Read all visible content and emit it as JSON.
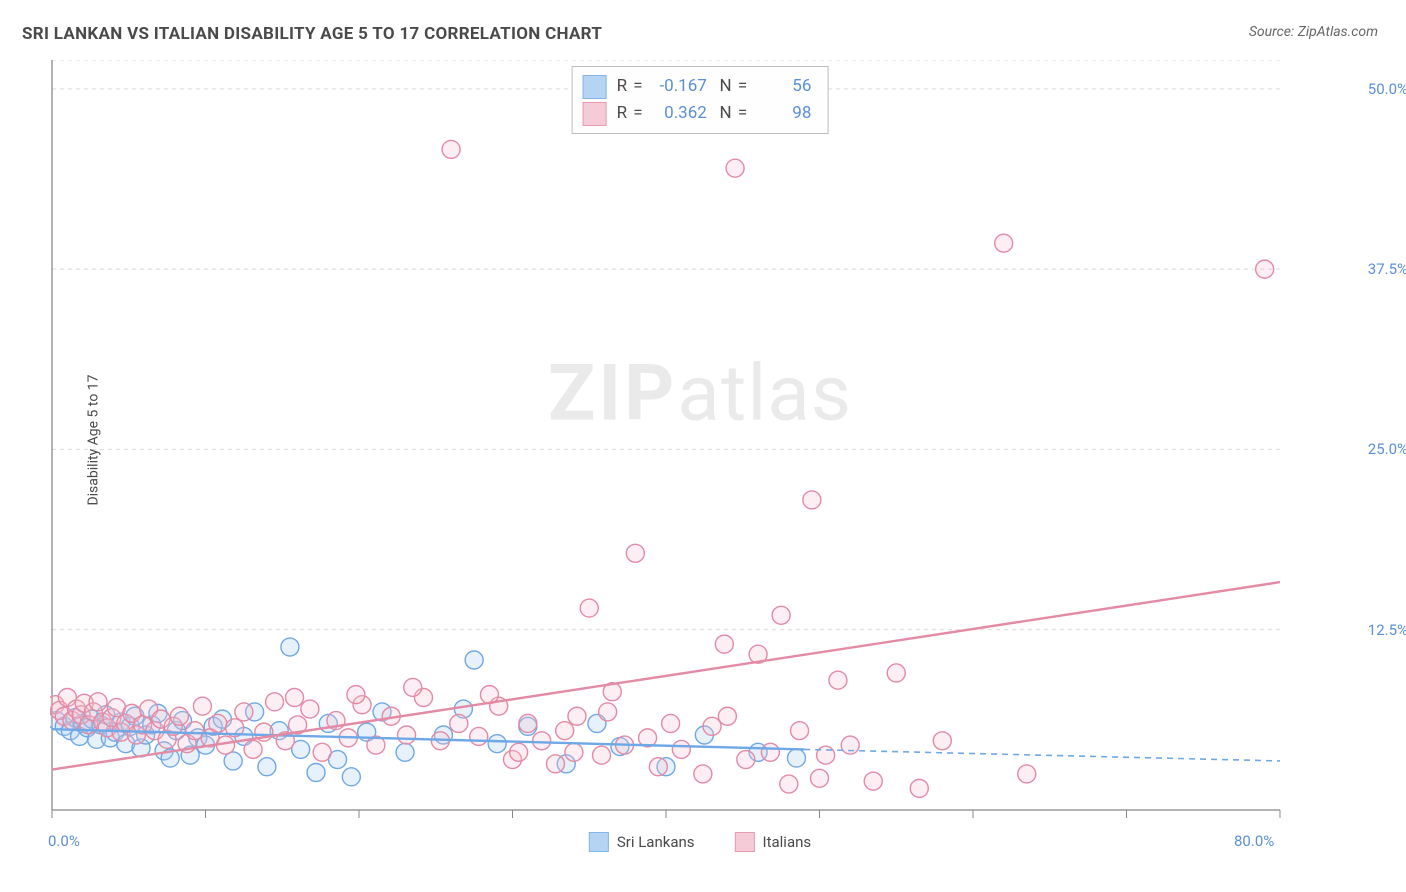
{
  "title": "SRI LANKAN VS ITALIAN DISABILITY AGE 5 TO 17 CORRELATION CHART",
  "source": "Source: ZipAtlas.com",
  "watermark": {
    "bold": "ZIP",
    "rest": "atlas"
  },
  "y_axis_title": "Disability Age 5 to 17",
  "chart": {
    "type": "scatter",
    "xlim": [
      0,
      80
    ],
    "ylim": [
      0,
      52
    ],
    "xtick_positions": [
      0,
      10,
      20,
      30,
      40,
      50,
      60,
      70,
      80
    ],
    "xtick_labels": {
      "0": "0.0%",
      "80": "80.0%"
    },
    "ytick_positions": [
      12.5,
      25.0,
      37.5,
      50.0
    ],
    "ytick_labels": [
      "12.5%",
      "25.0%",
      "37.5%",
      "50.0%"
    ],
    "grid_color": "#d9d9d9",
    "axis_color": "#888888",
    "background_color": "#ffffff",
    "marker_radius": 9,
    "marker_stroke_width": 1.4,
    "marker_fill_opacity": 0.28,
    "trend_line_width": 2.4,
    "series": [
      {
        "name": "Sri Lankans",
        "color_stroke": "#6fa8e6",
        "color_fill": "#a9cdf2",
        "R": "-0.167",
        "N": "56",
        "trend": {
          "x1": 0,
          "y1": 5.6,
          "x2": 49,
          "y2": 4.2,
          "dash_extend_to_x": 80,
          "dash_y": 3.4
        },
        "points": [
          [
            0.3,
            6.2
          ],
          [
            0.8,
            5.8
          ],
          [
            1.2,
            5.5
          ],
          [
            1.5,
            6.4
          ],
          [
            1.8,
            5.1
          ],
          [
            2.0,
            6.0
          ],
          [
            2.3,
            5.7
          ],
          [
            2.6,
            6.3
          ],
          [
            2.9,
            4.9
          ],
          [
            3.2,
            5.9
          ],
          [
            3.5,
            6.6
          ],
          [
            3.8,
            5.0
          ],
          [
            4.1,
            5.4
          ],
          [
            4.5,
            6.1
          ],
          [
            4.8,
            4.6
          ],
          [
            5.1,
            5.8
          ],
          [
            5.4,
            6.5
          ],
          [
            5.8,
            4.3
          ],
          [
            6.1,
            5.2
          ],
          [
            6.5,
            5.9
          ],
          [
            6.9,
            6.7
          ],
          [
            7.3,
            4.1
          ],
          [
            7.7,
            3.6
          ],
          [
            8.1,
            5.5
          ],
          [
            8.5,
            6.2
          ],
          [
            9.0,
            3.8
          ],
          [
            9.5,
            5.0
          ],
          [
            10.0,
            4.5
          ],
          [
            10.5,
            5.8
          ],
          [
            11.1,
            6.3
          ],
          [
            11.8,
            3.4
          ],
          [
            12.5,
            5.1
          ],
          [
            13.2,
            6.8
          ],
          [
            14.0,
            3.0
          ],
          [
            14.8,
            5.5
          ],
          [
            15.5,
            11.3
          ],
          [
            16.2,
            4.2
          ],
          [
            17.2,
            2.6
          ],
          [
            18.0,
            6.0
          ],
          [
            18.6,
            3.5
          ],
          [
            19.5,
            2.3
          ],
          [
            20.5,
            5.4
          ],
          [
            21.5,
            6.8
          ],
          [
            23.0,
            4.0
          ],
          [
            25.5,
            5.2
          ],
          [
            26.8,
            7.0
          ],
          [
            27.5,
            10.4
          ],
          [
            29.0,
            4.6
          ],
          [
            31.0,
            5.8
          ],
          [
            33.5,
            3.2
          ],
          [
            35.5,
            6.0
          ],
          [
            37.0,
            4.4
          ],
          [
            40.0,
            3.0
          ],
          [
            42.5,
            5.2
          ],
          [
            46.0,
            4.0
          ],
          [
            48.5,
            3.6
          ]
        ]
      },
      {
        "name": "Italians",
        "color_stroke": "#e38aa5",
        "color_fill": "#f5c3d2",
        "R": "0.362",
        "N": "98",
        "trend": {
          "x1": 0,
          "y1": 2.8,
          "x2": 80,
          "y2": 15.8
        },
        "points": [
          [
            0.2,
            7.3
          ],
          [
            0.5,
            6.9
          ],
          [
            0.8,
            6.5
          ],
          [
            1.0,
            7.8
          ],
          [
            1.3,
            6.2
          ],
          [
            1.6,
            7.0
          ],
          [
            1.9,
            6.6
          ],
          [
            2.1,
            7.4
          ],
          [
            2.4,
            5.9
          ],
          [
            2.7,
            6.8
          ],
          [
            3.0,
            7.5
          ],
          [
            3.3,
            6.1
          ],
          [
            3.6,
            5.7
          ],
          [
            3.9,
            6.4
          ],
          [
            4.2,
            7.1
          ],
          [
            4.5,
            5.4
          ],
          [
            4.8,
            6.0
          ],
          [
            5.2,
            6.7
          ],
          [
            5.5,
            5.2
          ],
          [
            5.9,
            5.9
          ],
          [
            6.3,
            7.0
          ],
          [
            6.7,
            5.5
          ],
          [
            7.1,
            6.3
          ],
          [
            7.5,
            4.9
          ],
          [
            7.9,
            5.8
          ],
          [
            8.3,
            6.5
          ],
          [
            8.8,
            4.6
          ],
          [
            9.3,
            5.5
          ],
          [
            9.8,
            7.2
          ],
          [
            10.3,
            5.0
          ],
          [
            10.8,
            6.0
          ],
          [
            11.3,
            4.5
          ],
          [
            11.9,
            5.7
          ],
          [
            12.5,
            6.8
          ],
          [
            13.1,
            4.2
          ],
          [
            13.8,
            5.4
          ],
          [
            14.5,
            7.5
          ],
          [
            15.2,
            4.8
          ],
          [
            16.0,
            5.9
          ],
          [
            16.8,
            7.0
          ],
          [
            17.6,
            4.0
          ],
          [
            18.5,
            6.2
          ],
          [
            19.3,
            5.0
          ],
          [
            20.2,
            7.3
          ],
          [
            21.1,
            4.5
          ],
          [
            22.1,
            6.5
          ],
          [
            23.1,
            5.2
          ],
          [
            24.2,
            7.8
          ],
          [
            25.3,
            4.8
          ],
          [
            26.5,
            6.0
          ],
          [
            27.8,
            5.1
          ],
          [
            29.1,
            7.2
          ],
          [
            30.0,
            3.5
          ],
          [
            30.4,
            4.0
          ],
          [
            31.0,
            6.0
          ],
          [
            31.9,
            4.8
          ],
          [
            32.8,
            3.2
          ],
          [
            33.4,
            5.5
          ],
          [
            34.2,
            6.5
          ],
          [
            35.0,
            14.0
          ],
          [
            35.8,
            3.8
          ],
          [
            36.5,
            8.2
          ],
          [
            37.3,
            4.5
          ],
          [
            38.0,
            17.8
          ],
          [
            38.8,
            5.0
          ],
          [
            39.5,
            3.0
          ],
          [
            40.3,
            6.0
          ],
          [
            41.0,
            4.2
          ],
          [
            42.4,
            2.5
          ],
          [
            43.0,
            5.8
          ],
          [
            43.8,
            11.5
          ],
          [
            44.5,
            44.5
          ],
          [
            45.2,
            3.5
          ],
          [
            46.0,
            10.8
          ],
          [
            46.8,
            4.0
          ],
          [
            47.5,
            13.5
          ],
          [
            48.0,
            1.8
          ],
          [
            48.7,
            5.5
          ],
          [
            49.5,
            21.5
          ],
          [
            50.0,
            2.2
          ],
          [
            50.4,
            3.8
          ],
          [
            51.2,
            9.0
          ],
          [
            52.0,
            4.5
          ],
          [
            53.5,
            2.0
          ],
          [
            55.0,
            9.5
          ],
          [
            56.5,
            1.5
          ],
          [
            58.0,
            4.8
          ],
          [
            62.0,
            39.3
          ],
          [
            63.5,
            2.5
          ],
          [
            79.0,
            37.5
          ],
          [
            26.0,
            45.8
          ],
          [
            15.8,
            7.8
          ],
          [
            19.8,
            8.0
          ],
          [
            23.5,
            8.5
          ],
          [
            28.5,
            8.0
          ],
          [
            34.0,
            4.0
          ],
          [
            36.2,
            6.8
          ],
          [
            44.0,
            6.5
          ]
        ]
      }
    ],
    "bottom_legend": [
      {
        "label": "Sri Lankans",
        "stroke": "#6fa8e6",
        "fill": "#a9cdf2"
      },
      {
        "label": "Italians",
        "stroke": "#e38aa5",
        "fill": "#f5c3d2"
      }
    ]
  }
}
